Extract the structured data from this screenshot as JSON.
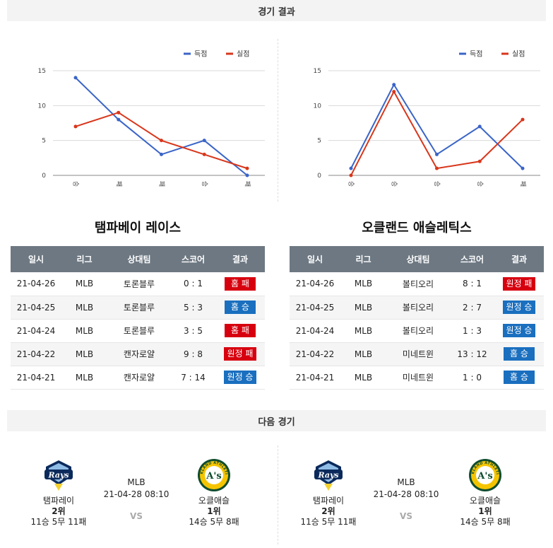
{
  "header": {
    "results_title": "경기 결과",
    "next_title": "다음 경기"
  },
  "legend": {
    "score": "득점",
    "allowed": "실점"
  },
  "colors": {
    "score": "#3a64c8",
    "allowed": "#d8361b",
    "win": "#1a6fbf",
    "loss": "#d7000f"
  },
  "chart_data": [
    {
      "type": "line",
      "categories": [
        "승",
        "패",
        "패",
        "승",
        "패"
      ],
      "ylim": [
        0,
        15
      ],
      "yticks": [
        0,
        5,
        10,
        15
      ],
      "legend_position": "top-right",
      "series": [
        {
          "name": "득점",
          "values": [
            14,
            8,
            3,
            5,
            0
          ]
        },
        {
          "name": "실점",
          "values": [
            7,
            9,
            5,
            3,
            1
          ]
        }
      ]
    },
    {
      "type": "line",
      "categories": [
        "승",
        "승",
        "승",
        "승",
        "패"
      ],
      "ylim": [
        0,
        15
      ],
      "yticks": [
        0,
        5,
        10,
        15
      ],
      "legend_position": "top-right",
      "series": [
        {
          "name": "득점",
          "values": [
            1,
            13,
            3,
            7,
            1
          ]
        },
        {
          "name": "실점",
          "values": [
            0,
            12,
            1,
            2,
            8
          ]
        }
      ]
    }
  ],
  "teams": [
    {
      "name": "탬파베이 레이스",
      "headers": [
        "일시",
        "리그",
        "상대팀",
        "스코어",
        "결과"
      ],
      "rows": [
        {
          "date": "21-04-26",
          "league": "MLB",
          "opponent": "토론블루",
          "score": "0 : 1",
          "result": "홈 패",
          "type": "loss"
        },
        {
          "date": "21-04-25",
          "league": "MLB",
          "opponent": "토론블루",
          "score": "5 : 3",
          "result": "홈 승",
          "type": "win"
        },
        {
          "date": "21-04-24",
          "league": "MLB",
          "opponent": "토론블루",
          "score": "3 : 5",
          "result": "홈 패",
          "type": "loss"
        },
        {
          "date": "21-04-22",
          "league": "MLB",
          "opponent": "캔자로얄",
          "score": "9 : 8",
          "result": "원정 패",
          "type": "loss"
        },
        {
          "date": "21-04-21",
          "league": "MLB",
          "opponent": "캔자로얄",
          "score": "7 : 14",
          "result": "원정 승",
          "type": "win"
        }
      ]
    },
    {
      "name": "오클랜드 애슬레틱스",
      "headers": [
        "일시",
        "리그",
        "상대팀",
        "스코어",
        "결과"
      ],
      "rows": [
        {
          "date": "21-04-26",
          "league": "MLB",
          "opponent": "볼티오리",
          "score": "8 : 1",
          "result": "원정 패",
          "type": "loss"
        },
        {
          "date": "21-04-25",
          "league": "MLB",
          "opponent": "볼티오리",
          "score": "2 : 7",
          "result": "원정 승",
          "type": "win"
        },
        {
          "date": "21-04-24",
          "league": "MLB",
          "opponent": "볼티오리",
          "score": "1 : 3",
          "result": "원정 승",
          "type": "win"
        },
        {
          "date": "21-04-22",
          "league": "MLB",
          "opponent": "미네트윈",
          "score": "13 : 12",
          "result": "홈 승",
          "type": "win"
        },
        {
          "date": "21-04-21",
          "league": "MLB",
          "opponent": "미네트윈",
          "score": "1 : 0",
          "result": "홈 승",
          "type": "win"
        }
      ]
    }
  ],
  "next_games": [
    {
      "league": "MLB",
      "datetime": "21-04-28 08:10",
      "vs": "VS",
      "home": {
        "name": "탬파레이",
        "rank": "2위",
        "record": "11승 5무 11패",
        "logo_text": "Rays"
      },
      "away": {
        "name": "오클애슬",
        "rank": "1위",
        "record": "14승 5무 8패",
        "logo_text": "A's",
        "ring_text": "OAKLAND ATHLETICS"
      }
    },
    {
      "league": "MLB",
      "datetime": "21-04-28 08:10",
      "vs": "VS",
      "home": {
        "name": "탬파레이",
        "rank": "2위",
        "record": "11승 5무 11패",
        "logo_text": "Rays"
      },
      "away": {
        "name": "오클애슬",
        "rank": "1위",
        "record": "14승 5무 8패",
        "logo_text": "A's",
        "ring_text": "OAKLAND ATHLETICS"
      }
    }
  ]
}
